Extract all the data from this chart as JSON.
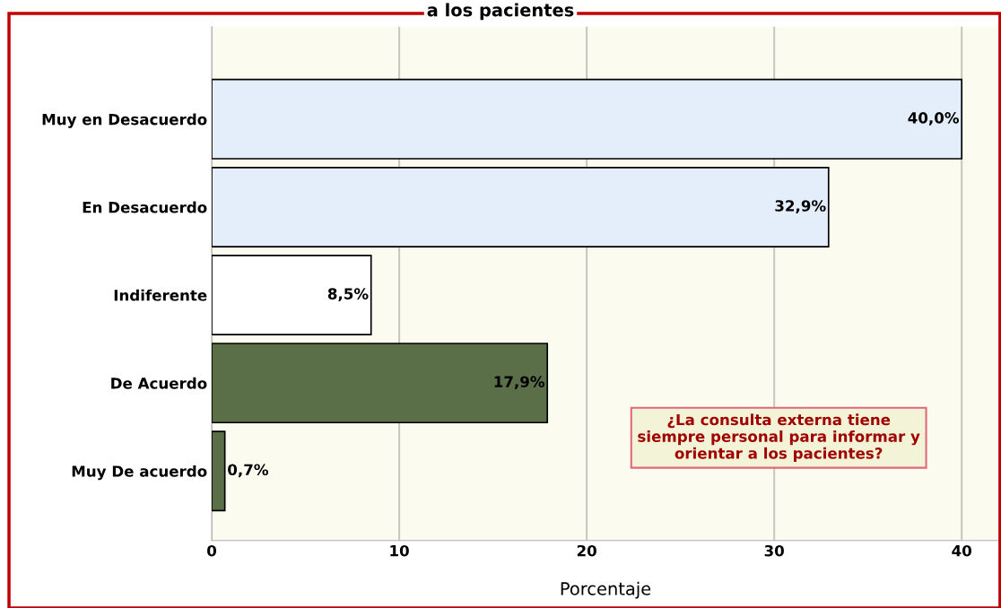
{
  "chart_data": {
    "type": "bar",
    "orientation": "horizontal",
    "title": "a los pacientes",
    "categories": [
      "Muy en Desacuerdo",
      "En Desacuerdo",
      "Indiferente",
      "De Acuerdo",
      "Muy De acuerdo"
    ],
    "values": [
      40.0,
      32.9,
      8.5,
      17.9,
      0.7
    ],
    "colors": [
      "#e3eefa",
      "#e3eefa",
      "#ffffff",
      "#5a6e48",
      "#5a6e48"
    ],
    "value_labels": [
      "40,0%",
      "32,9%",
      "8,5%",
      "17,9%",
      "0,7%"
    ],
    "xlabel": "Porcentaje",
    "xlim": [
      0,
      42
    ],
    "xticks": [
      0,
      10,
      20,
      30,
      40
    ],
    "grid": "x",
    "annotations": [
      "¿La consulta externa tiene\nsiempre personal para informar y\norientar a los pacientes?"
    ]
  }
}
